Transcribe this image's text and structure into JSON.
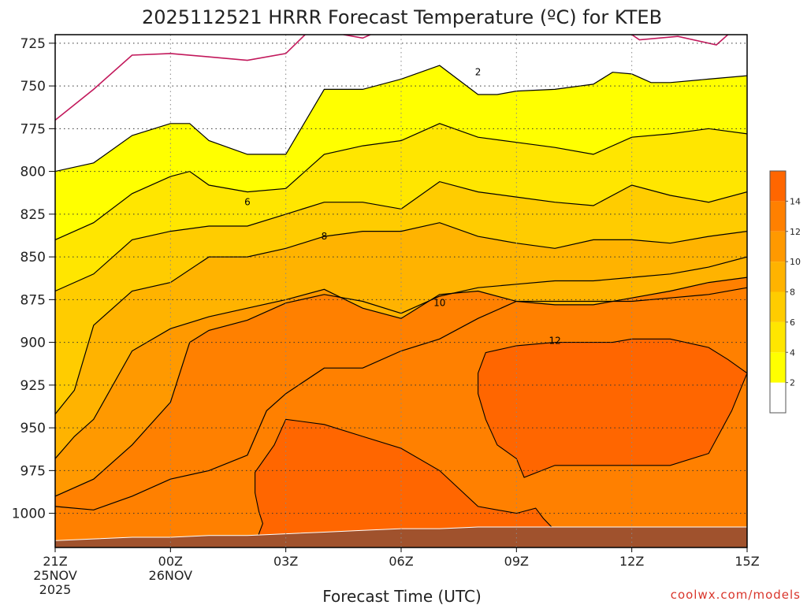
{
  "chart_data": {
    "type": "heatmap",
    "title": "2025112521 HRRR Forecast Temperature (ºC) for KTEB",
    "xlabel": "Forecast Time (UTC)",
    "ylabel": "",
    "credit": "coolwx.com/models",
    "x_ticks": [
      {
        "hour": 0,
        "lines": [
          "21Z",
          "25NOV",
          "2025"
        ]
      },
      {
        "hour": 3,
        "lines": [
          "00Z",
          "26NOV"
        ]
      },
      {
        "hour": 6,
        "lines": [
          "03Z"
        ]
      },
      {
        "hour": 9,
        "lines": [
          "06Z"
        ]
      },
      {
        "hour": 12,
        "lines": [
          "09Z"
        ]
      },
      {
        "hour": 15,
        "lines": [
          "12Z"
        ]
      },
      {
        "hour": 18,
        "lines": [
          "15Z"
        ]
      }
    ],
    "xlim": [
      0,
      18
    ],
    "y_ticks": [
      725,
      750,
      775,
      800,
      825,
      850,
      875,
      900,
      925,
      950,
      975,
      1000
    ],
    "ylim": [
      1020,
      720
    ],
    "grid": true,
    "colorbar": {
      "levels": [
        0,
        2,
        4,
        6,
        8,
        10,
        12,
        14,
        16
      ],
      "tick_labels": [
        "2",
        "4",
        "6",
        "8",
        "10",
        "12",
        "14"
      ],
      "colors": [
        "#ffffff",
        "#ffff00",
        "#ffe600",
        "#ffcc00",
        "#ffb300",
        "#ff9900",
        "#ff8000",
        "#ff6600"
      ],
      "placement": "right"
    },
    "terrain_color": "#a0522d",
    "contour_labels": [
      {
        "text": "2",
        "x": 11.0,
        "y": 742
      },
      {
        "text": "6",
        "x": 5.0,
        "y": 818
      },
      {
        "text": "8",
        "x": 7.0,
        "y": 838
      },
      {
        "text": "10",
        "x": 10.0,
        "y": 877
      },
      {
        "text": "12",
        "x": 13.0,
        "y": 899
      }
    ],
    "contours": [
      {
        "level": 0,
        "color": "#c2185b",
        "points": [
          [
            0.0,
            770
          ],
          [
            1.0,
            752
          ],
          [
            2.0,
            732
          ],
          [
            3.0,
            731
          ],
          [
            4.0,
            733
          ],
          [
            5.0,
            735
          ],
          [
            6.0,
            731
          ],
          [
            6.5,
            720
          ]
        ]
      },
      {
        "level": 0,
        "color": "#c2185b",
        "points": [
          [
            7.5,
            720
          ],
          [
            8.0,
            722
          ],
          [
            8.2,
            720
          ]
        ]
      },
      {
        "level": 0,
        "color": "#c2185b",
        "points": [
          [
            15.0,
            720
          ],
          [
            15.2,
            723
          ],
          [
            16.2,
            721
          ],
          [
            17.2,
            726
          ],
          [
            17.5,
            720
          ]
        ]
      },
      {
        "level": 2,
        "color": "#000000",
        "points": [
          [
            0.0,
            800
          ],
          [
            1.0,
            795
          ],
          [
            2.0,
            779
          ],
          [
            3.0,
            772
          ],
          [
            3.5,
            772
          ],
          [
            4.0,
            782
          ],
          [
            5.0,
            790
          ],
          [
            6.0,
            790
          ],
          [
            7.0,
            752
          ],
          [
            8.0,
            752
          ],
          [
            9.0,
            746
          ],
          [
            10.0,
            738
          ],
          [
            11.0,
            755
          ],
          [
            11.5,
            755
          ],
          [
            12.0,
            753
          ],
          [
            13.0,
            752
          ],
          [
            14.0,
            749
          ],
          [
            14.5,
            742
          ],
          [
            15.0,
            743
          ],
          [
            15.5,
            748
          ],
          [
            16.0,
            748
          ],
          [
            17.0,
            746
          ],
          [
            18.0,
            744
          ]
        ]
      },
      {
        "level": 4,
        "color": "#000000",
        "points": [
          [
            0.0,
            840
          ],
          [
            1.0,
            830
          ],
          [
            2.0,
            813
          ],
          [
            3.0,
            803
          ],
          [
            3.5,
            800
          ],
          [
            4.0,
            808
          ],
          [
            5.0,
            812
          ],
          [
            6.0,
            810
          ],
          [
            7.0,
            790
          ],
          [
            8.0,
            785
          ],
          [
            9.0,
            782
          ],
          [
            10.0,
            772
          ],
          [
            11.0,
            780
          ],
          [
            12.0,
            783
          ],
          [
            13.0,
            786
          ],
          [
            14.0,
            790
          ],
          [
            15.0,
            780
          ],
          [
            16.0,
            778
          ],
          [
            17.0,
            775
          ],
          [
            18.0,
            778
          ]
        ]
      },
      {
        "level": 6,
        "color": "#000000",
        "points": [
          [
            0.0,
            870
          ],
          [
            1.0,
            860
          ],
          [
            2.0,
            840
          ],
          [
            3.0,
            835
          ],
          [
            4.0,
            832
          ],
          [
            5.0,
            832
          ],
          [
            6.0,
            825
          ],
          [
            7.0,
            818
          ],
          [
            8.0,
            818
          ],
          [
            9.0,
            822
          ],
          [
            10.0,
            806
          ],
          [
            11.0,
            812
          ],
          [
            12.0,
            815
          ],
          [
            13.0,
            818
          ],
          [
            14.0,
            820
          ],
          [
            15.0,
            808
          ],
          [
            16.0,
            814
          ],
          [
            17.0,
            818
          ],
          [
            18.0,
            812
          ]
        ]
      },
      {
        "level": 8,
        "color": "#000000",
        "points": [
          [
            0.0,
            942
          ],
          [
            0.5,
            928
          ],
          [
            1.0,
            890
          ],
          [
            2.0,
            870
          ],
          [
            3.0,
            865
          ],
          [
            4.0,
            850
          ],
          [
            5.0,
            850
          ],
          [
            6.0,
            845
          ],
          [
            7.0,
            838
          ],
          [
            8.0,
            835
          ],
          [
            9.0,
            835
          ],
          [
            10.0,
            830
          ],
          [
            11.0,
            838
          ],
          [
            12.0,
            842
          ],
          [
            13.0,
            845
          ],
          [
            14.0,
            840
          ],
          [
            15.0,
            840
          ],
          [
            16.0,
            842
          ],
          [
            17.0,
            838
          ],
          [
            18.0,
            835
          ]
        ]
      },
      {
        "level": 10,
        "color": "#000000",
        "points": [
          [
            0.0,
            968
          ],
          [
            0.5,
            955
          ],
          [
            1.0,
            945
          ],
          [
            2.0,
            905
          ],
          [
            3.0,
            892
          ],
          [
            4.0,
            885
          ],
          [
            5.0,
            880
          ],
          [
            6.0,
            875
          ],
          [
            7.0,
            869
          ],
          [
            8.0,
            880
          ],
          [
            9.0,
            886
          ],
          [
            10.0,
            872
          ],
          [
            11.0,
            870
          ],
          [
            12.0,
            876
          ],
          [
            13.0,
            878
          ],
          [
            14.0,
            878
          ],
          [
            15.0,
            874
          ],
          [
            16.0,
            870
          ],
          [
            17.0,
            865
          ],
          [
            18.0,
            862
          ]
        ]
      },
      {
        "level": 12,
        "color": "#000000",
        "points": [
          [
            0.0,
            990
          ],
          [
            1.0,
            980
          ],
          [
            2.0,
            960
          ],
          [
            3.0,
            935
          ],
          [
            3.5,
            900
          ],
          [
            4.0,
            893
          ],
          [
            5.0,
            887
          ],
          [
            6.0,
            877
          ],
          [
            7.0,
            872
          ],
          [
            8.0,
            876
          ],
          [
            9.0,
            883
          ],
          [
            10.0,
            873
          ],
          [
            11.0,
            868
          ],
          [
            12.0,
            866
          ],
          [
            13.0,
            864
          ],
          [
            14.0,
            864
          ],
          [
            15.0,
            862
          ],
          [
            16.0,
            860
          ],
          [
            17.0,
            856
          ],
          [
            18.0,
            850
          ]
        ]
      },
      {
        "level": 14,
        "color": "#000000",
        "points": [
          [
            0.0,
            996
          ],
          [
            1.0,
            998
          ],
          [
            2.0,
            990
          ],
          [
            3.0,
            980
          ],
          [
            4.0,
            975
          ],
          [
            5.0,
            966
          ],
          [
            5.5,
            940
          ],
          [
            6.0,
            930
          ],
          [
            7.0,
            915
          ],
          [
            8.0,
            915
          ],
          [
            9.0,
            905
          ],
          [
            10.0,
            898
          ],
          [
            11.0,
            886
          ],
          [
            12.0,
            876
          ],
          [
            13.0,
            876
          ],
          [
            14.0,
            876
          ],
          [
            15.0,
            876
          ],
          [
            16.0,
            874
          ],
          [
            17.0,
            872
          ],
          [
            18.0,
            868
          ]
        ]
      }
    ],
    "warm_cells": [
      {
        "points": [
          [
            5.3,
            1012
          ],
          [
            5.4,
            1006
          ],
          [
            5.3,
            999
          ],
          [
            5.2,
            988
          ],
          [
            5.2,
            976
          ],
          [
            5.7,
            960
          ],
          [
            6.0,
            945
          ],
          [
            7.0,
            948
          ],
          [
            8.0,
            955
          ],
          [
            9.0,
            962
          ],
          [
            10.0,
            975
          ],
          [
            11.0,
            996
          ],
          [
            12.0,
            1000
          ],
          [
            12.5,
            997
          ],
          [
            12.7,
            1003
          ],
          [
            13.0,
            1010
          ],
          [
            14.0,
            1020
          ],
          [
            15.0,
            1020
          ],
          [
            15.5,
            1018
          ],
          [
            17.0,
            1015
          ],
          [
            17.5,
            1014
          ],
          [
            18.0,
            1011
          ],
          [
            18.0,
            1020
          ],
          [
            5.3,
            1020
          ]
        ]
      },
      {
        "points": [
          [
            11.0,
            918
          ],
          [
            11.2,
            906
          ],
          [
            12.0,
            902
          ],
          [
            13.0,
            900
          ],
          [
            14.0,
            900
          ],
          [
            14.5,
            900
          ],
          [
            15.0,
            898
          ],
          [
            16.0,
            898
          ],
          [
            17.0,
            903
          ],
          [
            17.5,
            910
          ],
          [
            18.0,
            918
          ],
          [
            17.6,
            940
          ],
          [
            17.0,
            965
          ],
          [
            16.0,
            972
          ],
          [
            15.0,
            972
          ],
          [
            14.0,
            972
          ],
          [
            13.0,
            972
          ],
          [
            12.2,
            979
          ],
          [
            12.0,
            968
          ],
          [
            11.5,
            960
          ],
          [
            11.2,
            945
          ],
          [
            11.0,
            930
          ]
        ]
      }
    ],
    "terrain": [
      [
        0.0,
        1016
      ],
      [
        1.0,
        1015
      ],
      [
        2.0,
        1014
      ],
      [
        3.0,
        1014
      ],
      [
        4.0,
        1013
      ],
      [
        5.0,
        1013
      ],
      [
        6.0,
        1012
      ],
      [
        7.0,
        1011
      ],
      [
        8.0,
        1010
      ],
      [
        9.0,
        1009
      ],
      [
        10.0,
        1009
      ],
      [
        11.0,
        1008
      ],
      [
        12.0,
        1008
      ],
      [
        13.0,
        1008
      ],
      [
        14.0,
        1008
      ],
      [
        15.0,
        1008
      ],
      [
        16.0,
        1008
      ],
      [
        17.0,
        1008
      ],
      [
        18.0,
        1008
      ]
    ]
  }
}
